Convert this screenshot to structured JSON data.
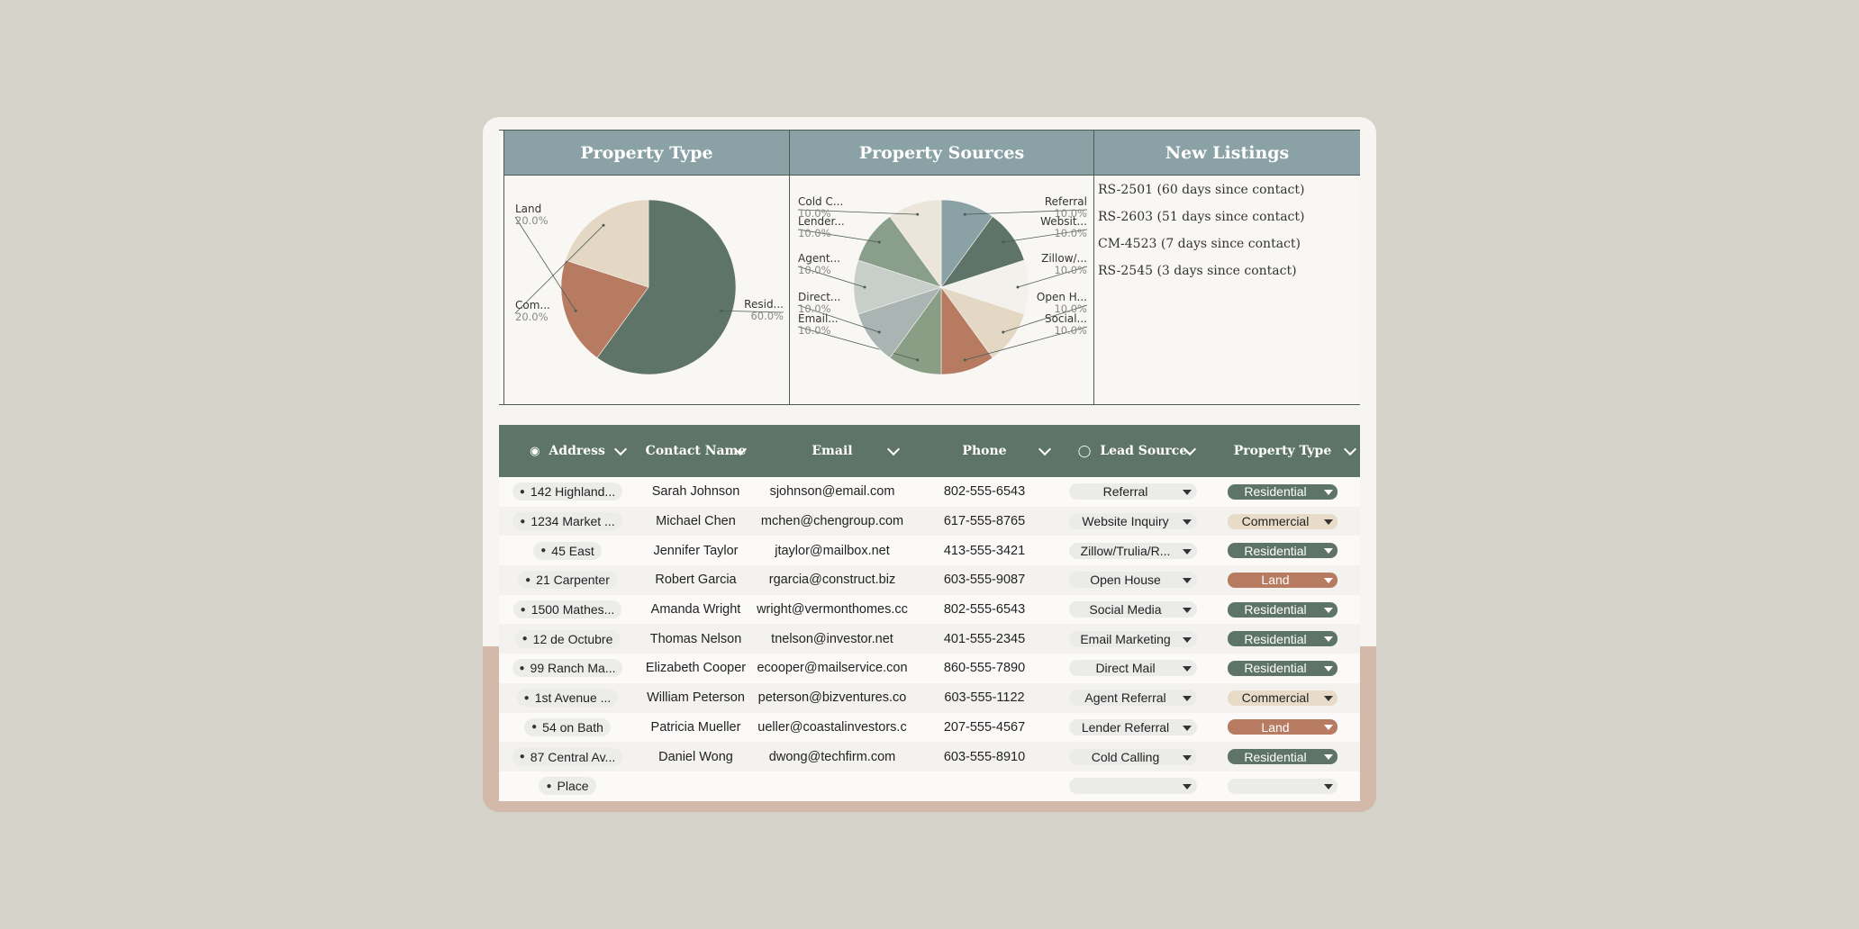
{
  "dashboard": {
    "property_type": {
      "title": "Property Type",
      "chart_data": {
        "type": "pie",
        "categories": [
          "Residential",
          "Land",
          "Commercial"
        ],
        "labels": [
          "Resid...",
          "Land",
          "Com..."
        ],
        "values": [
          60.0,
          20.0,
          20.0
        ],
        "value_labels": [
          "60.0%",
          "20.0%",
          "20.0%"
        ],
        "colors": [
          "#5e7469",
          "#b77b62",
          "#e4d7c3"
        ]
      }
    },
    "property_sources": {
      "title": "Property Sources",
      "chart_data": {
        "type": "pie",
        "labels": [
          "Referral",
          "Websit...",
          "Zillow/...",
          "Open H...",
          "Social...",
          "Email...",
          "Direct...",
          "Agent...",
          "Lender...",
          "Cold C..."
        ],
        "values": [
          10.0,
          10.0,
          10.0,
          10.0,
          10.0,
          10.0,
          10.0,
          10.0,
          10.0,
          10.0
        ],
        "value_labels": [
          "10.0%",
          "10.0%",
          "10.0%",
          "10.0%",
          "10.0%",
          "10.0%",
          "10.0%",
          "10.0%",
          "10.0%",
          "10.0%"
        ],
        "colors": [
          "#8aa1a5",
          "#5e7469",
          "#f3f1ec",
          "#e4d7c3",
          "#b77b62",
          "#8a9e85",
          "#a9b4b3",
          "#c8cfcb",
          "#8a9e8c",
          "#ece6da"
        ]
      }
    },
    "new_listings": {
      "title": "New Listings",
      "items": [
        "RS-2501 (60 days since contact)",
        "RS-2603 (51 days since contact)",
        "CM-4523 (7 days since contact)",
        "RS-2545 (3 days since contact)"
      ]
    }
  },
  "table": {
    "headers": {
      "address": "Address",
      "contact_name": "Contact Name",
      "email": "Email",
      "phone": "Phone",
      "lead_source": "Lead Source",
      "property_type": "Property Type"
    },
    "rows": [
      {
        "address": "142 Highland...",
        "name": "Sarah Johnson",
        "email": "sjohnson@email.com",
        "phone": "802-555-6543",
        "lead": "Referral",
        "type": "Residential"
      },
      {
        "address": "1234 Market ...",
        "name": "Michael Chen",
        "email": "mchen@chengroup.com",
        "phone": "617-555-8765",
        "lead": "Website Inquiry",
        "type": "Commercial"
      },
      {
        "address": "45 East",
        "name": "Jennifer Taylor",
        "email": "jtaylor@mailbox.net",
        "phone": "413-555-3421",
        "lead": "Zillow/Trulia/R...",
        "type": "Residential"
      },
      {
        "address": "21 Carpenter",
        "name": "Robert Garcia",
        "email": "rgarcia@construct.biz",
        "phone": "603-555-9087",
        "lead": "Open House",
        "type": "Land"
      },
      {
        "address": "1500 Mathes...",
        "name": "Amanda Wright",
        "email": "wright@vermonthomes.cc",
        "phone": "802-555-6543",
        "lead": "Social Media",
        "type": "Residential"
      },
      {
        "address": "12 de Octubre",
        "name": "Thomas Nelson",
        "email": "tnelson@investor.net",
        "phone": "401-555-2345",
        "lead": "Email Marketing",
        "type": "Residential"
      },
      {
        "address": "99 Ranch Ma...",
        "name": "Elizabeth Cooper",
        "email": "ecooper@mailservice.con",
        "phone": "860-555-7890",
        "lead": "Direct Mail",
        "type": "Residential"
      },
      {
        "address": "1st Avenue ...",
        "name": "William Peterson",
        "email": "peterson@bizventures.co",
        "phone": "603-555-1122",
        "lead": "Agent Referral",
        "type": "Commercial"
      },
      {
        "address": "54 on Bath",
        "name": "Patricia Mueller",
        "email": "ueller@coastalinvestors.c",
        "phone": "207-555-4567",
        "lead": "Lender Referral",
        "type": "Land"
      },
      {
        "address": "87 Central Av...",
        "name": "Daniel Wong",
        "email": "dwong@techfirm.com",
        "phone": "603-555-8910",
        "lead": "Cold Calling",
        "type": "Residential"
      },
      {
        "address": "Place",
        "name": "",
        "email": "",
        "phone": "",
        "lead": "",
        "type": ""
      }
    ]
  }
}
